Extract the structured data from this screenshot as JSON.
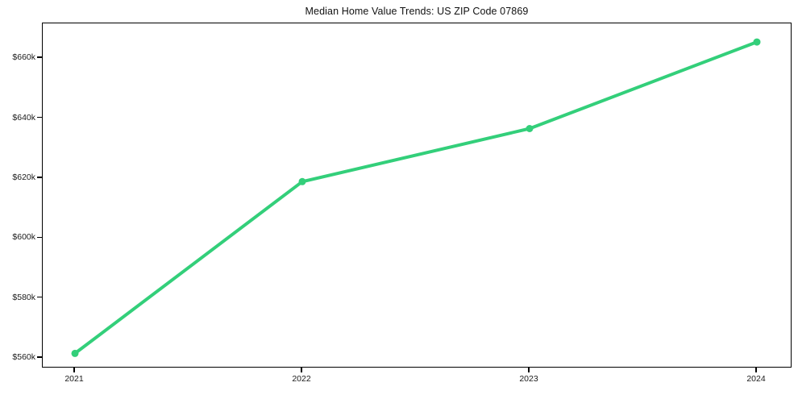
{
  "chart_data": {
    "type": "line",
    "title": "Median Home Value Trends: US ZIP Code 07869",
    "x": [
      2021,
      2022,
      2023,
      2024
    ],
    "x_tick_labels": [
      "2021",
      "2022",
      "2023",
      "2024"
    ],
    "series": [
      {
        "name": "Median Home Value",
        "values": [
          561500,
          618800,
          636500,
          665400
        ]
      }
    ],
    "y_ticks": [
      560000,
      580000,
      600000,
      620000,
      640000,
      660000
    ],
    "y_tick_labels": [
      "$560k",
      "$580k",
      "$600k",
      "$620k",
      "$640k",
      "$660k"
    ],
    "xlim": [
      2020.858,
      2024.156
    ],
    "ylim": [
      556500,
      671600
    ],
    "xlabel": "",
    "ylabel": "",
    "grid": false,
    "legend": "none",
    "line_color": "#33cf7a",
    "line_width": 4,
    "marker": "circle",
    "marker_radius": 4.5,
    "background_color": "#ffffff",
    "spine_color": "#000000"
  }
}
